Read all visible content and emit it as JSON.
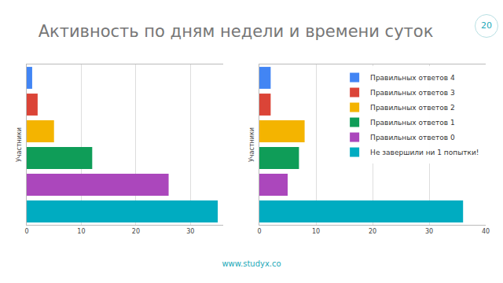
{
  "slide_title": "Активность по дням недели и времени суток",
  "page_number": "20",
  "footer": "www.studyx.co",
  "chart_data": [
    {
      "type": "bar",
      "orientation": "horizontal",
      "y_label": "Участники",
      "xlim": [
        0,
        36
      ],
      "xticks": [
        0,
        10,
        20,
        30
      ],
      "grid": true,
      "tick_labels": "x",
      "series": [
        {
          "color": "#4285f4",
          "values": [
            1
          ]
        },
        {
          "color": "#db4437",
          "values": [
            2
          ]
        },
        {
          "color": "#f4b400",
          "values": [
            5
          ]
        },
        {
          "color": "#0f9d58",
          "values": [
            12
          ]
        },
        {
          "color": "#ab47bc",
          "values": [
            26
          ]
        },
        {
          "color": "#00acc1",
          "values": [
            35
          ]
        }
      ]
    },
    {
      "type": "bar",
      "orientation": "horizontal",
      "y_label": "Участники",
      "xlim": [
        0,
        40
      ],
      "xticks": [
        0,
        10,
        20,
        30,
        40
      ],
      "grid": true,
      "tick_labels": "x",
      "legend": "top right",
      "series": [
        {
          "name": "Правильных ответов 4",
          "color": "#4285f4",
          "values": [
            2
          ]
        },
        {
          "name": "Правильных ответов 3",
          "color": "#db4437",
          "values": [
            2
          ]
        },
        {
          "name": "Правильных ответов 2",
          "color": "#f4b400",
          "values": [
            8
          ]
        },
        {
          "name": "Правильных ответов 1",
          "color": "#0f9d58",
          "values": [
            7
          ]
        },
        {
          "name": "Правильных ответов 0",
          "color": "#ab47bc",
          "values": [
            5
          ]
        },
        {
          "name": "Не завершили ни 1 попытки!",
          "color": "#00acc1",
          "values": [
            36
          ]
        }
      ]
    }
  ]
}
